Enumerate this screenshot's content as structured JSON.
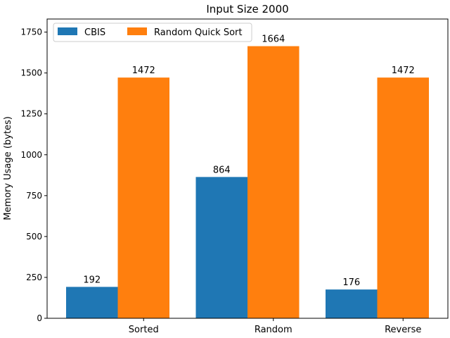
{
  "chart_data": {
    "type": "bar",
    "title": "Input Size 2000",
    "xlabel": "",
    "ylabel": "Memory Usage (bytes)",
    "categories": [
      "Sorted",
      "Random",
      "Reverse"
    ],
    "series": [
      {
        "name": "CBIS",
        "values": [
          192,
          864,
          176
        ],
        "color": "#1f77b4"
      },
      {
        "name": "Random Quick Sort",
        "values": [
          1472,
          1664,
          1472
        ],
        "color": "#ff7f0e"
      }
    ],
    "ylim": [
      0,
      1830
    ],
    "yticks": [
      0,
      250,
      500,
      750,
      1000,
      1250,
      1500,
      1750
    ],
    "grid": false,
    "legend_position": "top-left"
  }
}
